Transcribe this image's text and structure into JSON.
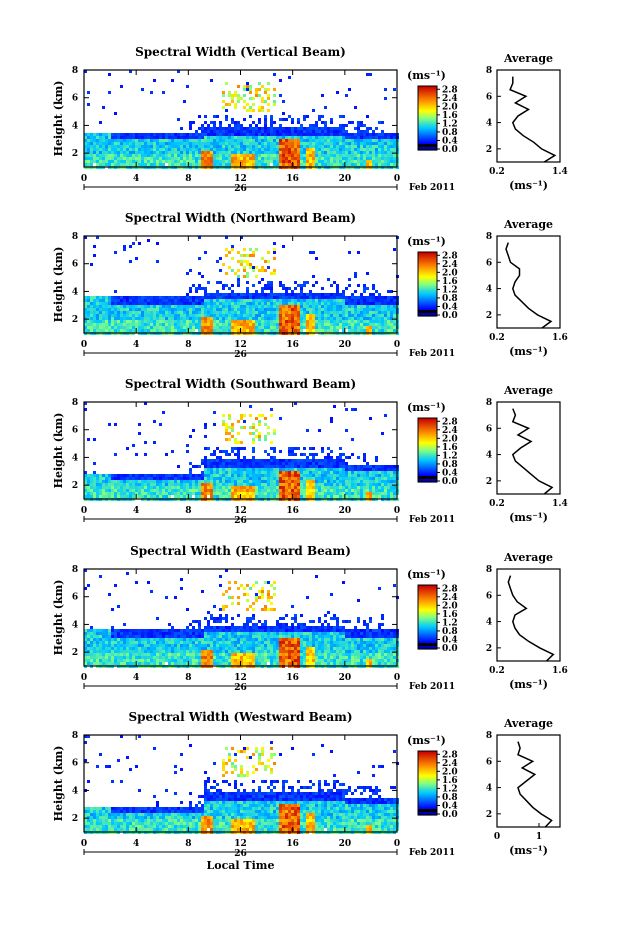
{
  "chart_data": [
    {
      "type": "heatmap",
      "title": "Spectral Width (Vertical Beam)",
      "ylabel": "Height (km)",
      "x_ticks": [
        "0",
        "4",
        "8",
        "12",
        "16",
        "20",
        "0"
      ],
      "y_ticks": [
        "2",
        "4",
        "6",
        "8"
      ],
      "ylim": [
        1,
        8
      ],
      "date_label": "26",
      "month_label": "Feb 2011",
      "colorbar": {
        "unit": "(ms⁻¹)",
        "ticks": [
          "2.8",
          "2.4",
          "2.0",
          "1.6",
          "1.2",
          "0.8",
          "0.4",
          "0.0"
        ],
        "range": [
          0,
          3.0
        ]
      },
      "profile": {
        "title": "Average",
        "xlabel": "(ms⁻¹)",
        "x_ticks": [
          "0.2",
          "1.4"
        ],
        "y_ticks": [
          "2",
          "4",
          "6",
          "8"
        ],
        "xlim": [
          0.2,
          1.4
        ],
        "heights": [
          1.0,
          1.5,
          2.0,
          2.5,
          3.0,
          3.5,
          4.0,
          4.5,
          5.0,
          5.5,
          6.0,
          6.5,
          7.0,
          7.5
        ],
        "values": [
          1.1,
          1.3,
          1.05,
          0.9,
          0.7,
          0.55,
          0.5,
          0.6,
          0.8,
          0.55,
          0.75,
          0.45,
          0.5,
          0.5
        ]
      }
    },
    {
      "type": "heatmap",
      "title": "Spectral Width (Northward Beam)",
      "ylabel": "Height (km)",
      "x_ticks": [
        "0",
        "4",
        "8",
        "12",
        "16",
        "20",
        "0"
      ],
      "y_ticks": [
        "2",
        "4",
        "6",
        "8"
      ],
      "ylim": [
        1,
        8
      ],
      "date_label": "26",
      "month_label": "Feb 2011",
      "colorbar": {
        "unit": "(ms⁻¹)",
        "ticks": [
          "2.8",
          "2.4",
          "2.0",
          "1.6",
          "1.2",
          "0.8",
          "0.4",
          "0.0"
        ],
        "range": [
          0,
          3.0
        ]
      },
      "profile": {
        "title": "Average",
        "xlabel": "(ms⁻¹)",
        "x_ticks": [
          "0.2",
          "1.6"
        ],
        "y_ticks": [
          "2",
          "4",
          "6",
          "8"
        ],
        "xlim": [
          0.2,
          1.6
        ],
        "heights": [
          1.0,
          1.5,
          2.0,
          2.5,
          3.0,
          3.5,
          4.0,
          4.5,
          5.0,
          5.5,
          6.0,
          6.5,
          7.0,
          7.5
        ],
        "values": [
          1.2,
          1.4,
          1.1,
          0.9,
          0.75,
          0.6,
          0.55,
          0.6,
          0.7,
          0.7,
          0.5,
          0.45,
          0.4,
          0.45
        ]
      }
    },
    {
      "type": "heatmap",
      "title": "Spectral Width (Southward Beam)",
      "ylabel": "Height (km)",
      "x_ticks": [
        "0",
        "4",
        "8",
        "12",
        "16",
        "20",
        "0"
      ],
      "y_ticks": [
        "2",
        "4",
        "6",
        "8"
      ],
      "ylim": [
        1,
        8
      ],
      "date_label": "26",
      "month_label": "Feb 2011",
      "colorbar": {
        "unit": "(ms⁻¹)",
        "ticks": [
          "2.8",
          "2.4",
          "2.0",
          "1.6",
          "1.2",
          "0.8",
          "0.4",
          "0.0"
        ],
        "range": [
          0,
          3.0
        ]
      },
      "profile": {
        "title": "Average",
        "xlabel": "(ms⁻¹)",
        "x_ticks": [
          "0.2",
          "1.4"
        ],
        "y_ticks": [
          "2",
          "4",
          "6",
          "8"
        ],
        "xlim": [
          0.2,
          1.4
        ],
        "heights": [
          1.0,
          1.5,
          2.0,
          2.5,
          3.0,
          3.5,
          4.0,
          4.5,
          5.0,
          5.5,
          6.0,
          6.5,
          7.0,
          7.5
        ],
        "values": [
          1.1,
          1.25,
          1.0,
          0.85,
          0.7,
          0.55,
          0.5,
          0.65,
          0.85,
          0.6,
          0.8,
          0.5,
          0.55,
          0.5
        ]
      }
    },
    {
      "type": "heatmap",
      "title": "Spectral Width (Eastward Beam)",
      "ylabel": "Height (km)",
      "x_ticks": [
        "0",
        "4",
        "8",
        "12",
        "16",
        "20",
        "0"
      ],
      "y_ticks": [
        "2",
        "4",
        "6",
        "8"
      ],
      "ylim": [
        1,
        8
      ],
      "date_label": "26",
      "month_label": "Feb 2011",
      "colorbar": {
        "unit": "(ms⁻¹)",
        "ticks": [
          "2.8",
          "2.4",
          "2.0",
          "1.6",
          "1.2",
          "0.8",
          "0.4",
          "0.0"
        ],
        "range": [
          0,
          3.0
        ]
      },
      "profile": {
        "title": "Average",
        "xlabel": "(ms⁻¹)",
        "x_ticks": [
          "0.2",
          "1.6"
        ],
        "y_ticks": [
          "2",
          "4",
          "6",
          "8"
        ],
        "xlim": [
          0.2,
          1.6
        ],
        "heights": [
          1.0,
          1.5,
          2.0,
          2.5,
          3.0,
          3.5,
          4.0,
          4.5,
          5.0,
          5.5,
          6.0,
          6.5,
          7.0,
          7.5
        ],
        "values": [
          1.3,
          1.45,
          1.15,
          0.9,
          0.7,
          0.6,
          0.55,
          0.6,
          0.85,
          0.65,
          0.55,
          0.5,
          0.45,
          0.5
        ]
      }
    },
    {
      "type": "heatmap",
      "title": "Spectral Width (Westward Beam)",
      "ylabel": "Height (km)",
      "xlabel": "Local Time",
      "x_ticks": [
        "0",
        "4",
        "8",
        "12",
        "16",
        "20",
        "0"
      ],
      "y_ticks": [
        "2",
        "4",
        "6",
        "8"
      ],
      "ylim": [
        1,
        8
      ],
      "date_label": "26",
      "month_label": "Feb 2011",
      "colorbar": {
        "unit": "(ms⁻¹)",
        "ticks": [
          "2.8",
          "2.4",
          "2.0",
          "1.6",
          "1.2",
          "0.8",
          "0.4",
          "0.0"
        ],
        "range": [
          0,
          3.0
        ]
      },
      "profile": {
        "title": "Average",
        "xlabel": "(ms⁻¹)",
        "x_ticks": [
          "0",
          "1"
        ],
        "y_ticks": [
          "2",
          "4",
          "6",
          "8"
        ],
        "xlim": [
          0,
          1.5
        ],
        "heights": [
          1.0,
          1.5,
          2.0,
          2.5,
          3.0,
          3.5,
          4.0,
          4.5,
          5.0,
          5.5,
          6.0,
          6.5,
          7.0,
          7.5
        ],
        "values": [
          1.15,
          1.3,
          1.05,
          0.85,
          0.7,
          0.55,
          0.5,
          0.7,
          0.9,
          0.6,
          0.85,
          0.5,
          0.55,
          0.5
        ]
      }
    }
  ]
}
